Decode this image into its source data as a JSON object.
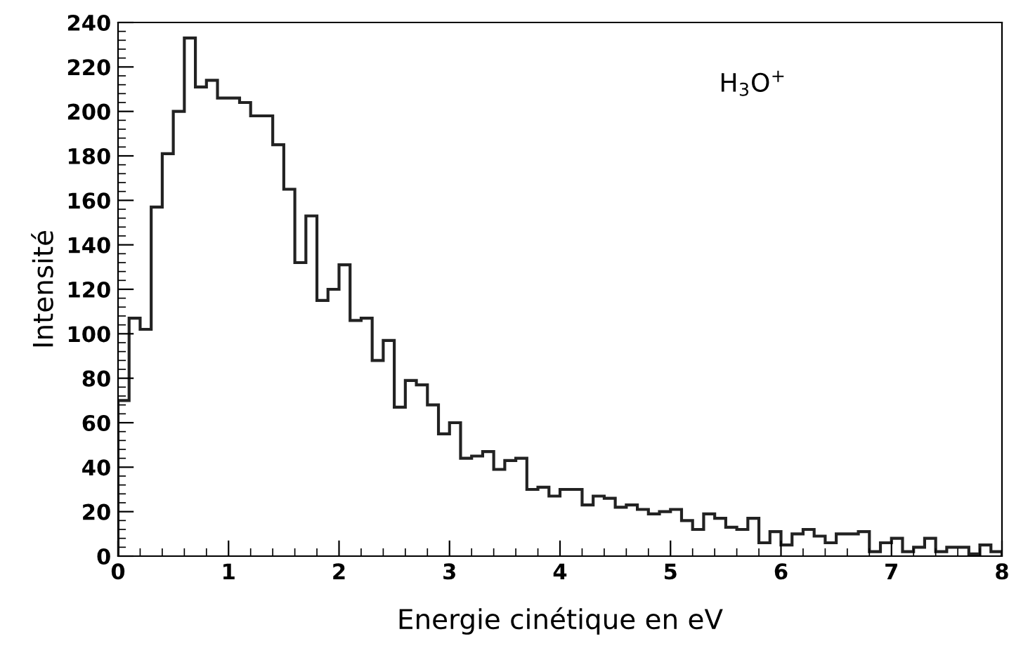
{
  "chart_data": {
    "type": "histogram",
    "xlabel": "Energie cinétique en eV",
    "ylabel": "Intensité",
    "annotations": [
      "H$_{3}$O$^{+}$"
    ],
    "bins": [
      0,
      0.1,
      0.2,
      0.3,
      0.4,
      0.5,
      0.6,
      0.7,
      0.8,
      0.9,
      1,
      1.1,
      1.2,
      1.3,
      1.4,
      1.5,
      1.6,
      1.7,
      1.8,
      1.9,
      2,
      2.1,
      2.2,
      2.3,
      2.4,
      2.5,
      2.6,
      2.7,
      2.8,
      2.9,
      3,
      3.1,
      3.2,
      3.3,
      3.4,
      3.5,
      3.6,
      3.7,
      3.8,
      3.9,
      4,
      4.1,
      4.2,
      4.3,
      4.4,
      4.5,
      4.6,
      4.7,
      4.8,
      4.9,
      5,
      5.1,
      5.2,
      5.3,
      5.4,
      5.5,
      5.6,
      5.7,
      5.8,
      5.9,
      6,
      6.1,
      6.2,
      6.3,
      6.4,
      6.5,
      6.6,
      6.7,
      6.8,
      6.9,
      7,
      7.1,
      7.2,
      7.3,
      7.4,
      7.5,
      7.6,
      7.7,
      7.8,
      7.9,
      8
    ],
    "values": [
      70,
      107,
      102,
      157,
      181,
      200,
      233,
      211,
      214,
      206,
      206,
      204,
      198,
      198,
      185,
      165,
      132,
      153,
      115,
      120,
      131,
      106,
      107,
      88,
      97,
      67,
      79,
      77,
      68,
      55,
      60,
      44,
      45,
      47,
      39,
      43,
      44,
      30,
      31,
      27,
      30,
      30,
      23,
      27,
      26,
      22,
      23,
      21,
      19,
      20,
      21,
      16,
      12,
      19,
      17,
      13,
      12,
      17,
      6,
      11,
      5,
      10,
      12,
      9,
      6,
      10,
      10,
      11,
      2,
      6,
      8,
      2,
      4,
      8,
      2,
      4,
      4,
      1,
      5,
      2
    ],
    "color": "#222222",
    "xlim": [
      0,
      8
    ],
    "ylim": [
      0,
      240
    ],
    "xticks": [
      0,
      1,
      2,
      3,
      4,
      5,
      6,
      7,
      8
    ],
    "yticks": [
      0,
      20,
      40,
      60,
      80,
      100,
      120,
      140,
      160,
      180,
      200,
      220,
      240
    ],
    "grid": false
  }
}
